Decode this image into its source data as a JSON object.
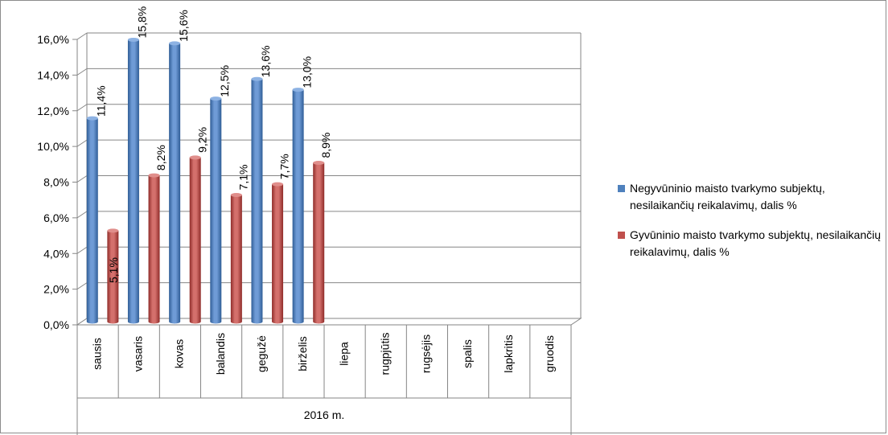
{
  "chart_data": {
    "type": "bar",
    "categories": [
      "sausis",
      "vasaris",
      "kovas",
      "balandis",
      "gegužė",
      "birželis",
      "liepa",
      "rugpjūtis",
      "rugsėjis",
      "spalis",
      "lapkritis",
      "gruodis"
    ],
    "group_label": "2016 m.",
    "series": [
      {
        "name": "Negyvūninio maisto tvarkymo subjektų, nesilaikančių reikalavimų, dalis %",
        "values": [
          11.4,
          15.8,
          15.6,
          12.5,
          13.6,
          13.0,
          null,
          null,
          null,
          null,
          null,
          null
        ],
        "labels": [
          "11,4%",
          "15,8%",
          "15,6%",
          "12,5%",
          "13,6%",
          "13,0%",
          "",
          "",
          "",
          "",
          "",
          ""
        ],
        "color": "#4f81bd"
      },
      {
        "name": "Gyvūninio maisto tvarkymo subjektų, nesilaikančių reikalavimų, dalis %",
        "values": [
          5.1,
          8.2,
          9.2,
          7.1,
          7.7,
          8.9,
          null,
          null,
          null,
          null,
          null,
          null
        ],
        "labels": [
          "5,1%",
          "8,2%",
          "9,2%",
          "7,1%",
          "7,7%",
          "8,9%",
          "",
          "",
          "",
          "",
          "",
          ""
        ],
        "color": "#c0504d"
      }
    ],
    "y_ticks": [
      "0,0%",
      "2,0%",
      "4,0%",
      "6,0%",
      "8,0%",
      "10,0%",
      "12,0%",
      "14,0%",
      "16,0%"
    ],
    "ylim": [
      0,
      16
    ],
    "grid": true,
    "legend_position": "right"
  }
}
